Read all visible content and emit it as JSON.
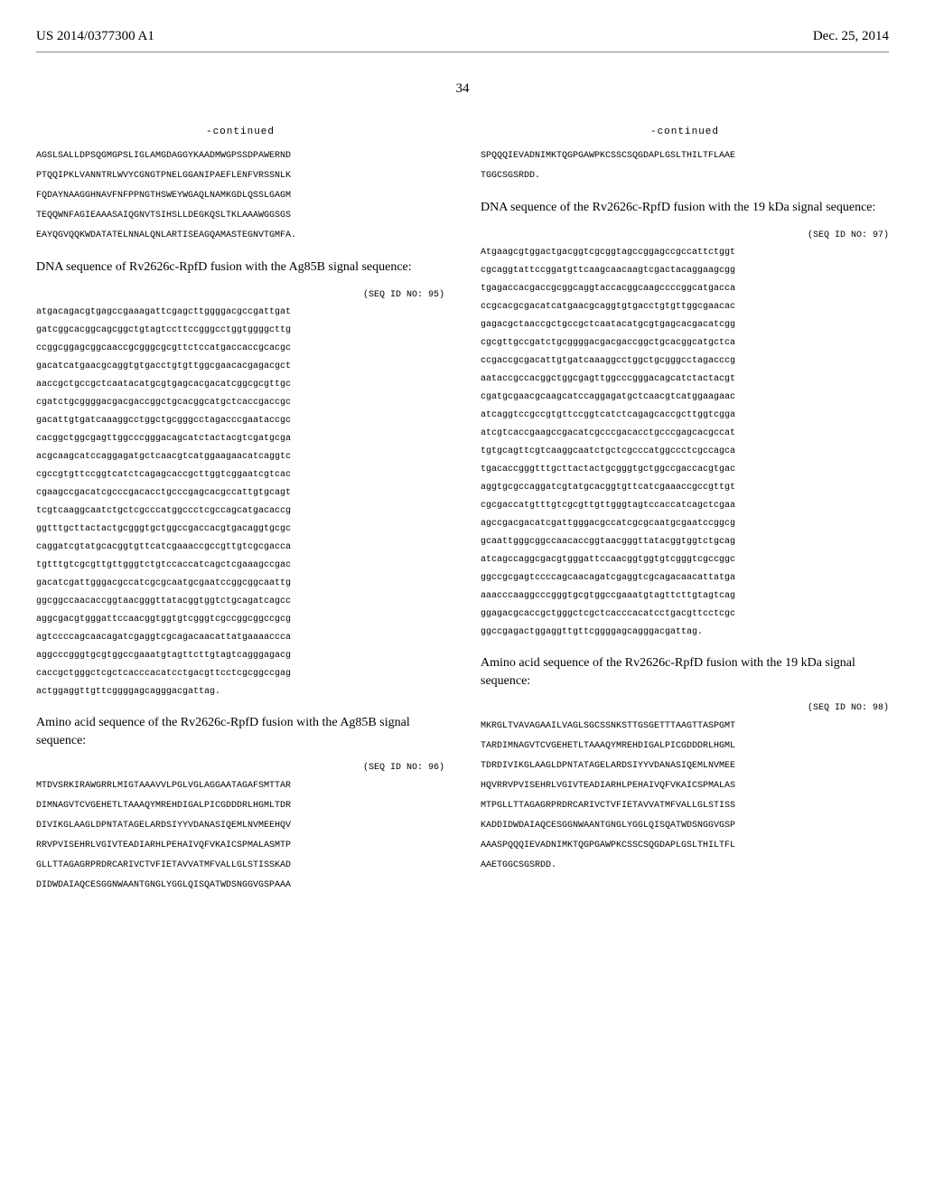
{
  "header": {
    "left": "US 2014/0377300 A1",
    "right": "Dec. 25, 2014"
  },
  "page_number": "34",
  "left_col": {
    "continued": "-continued",
    "seq1": "AGSLSALLDPSQGMGPSLIGLAMGDAGGYKAADMWGPSSDPAWERND\nPTQQIPKLVANNTRLWVYCGNGTPNELGGANIPAEFLENFVRSSNLK\nFQDAYNAAGGHNAVFNFPPNGTHSWEYWGAQLNAMKGDLQSSLGAGM\nTEQQWNFAGIEAAASAIQGNVTSIHSLLDEGKQSLTKLAAAWGGSGS\nEAYQGVQQKWDATATELNNALQNLARTISEAGQAMASTEGNVTGMFA.",
    "desc1": "DNA sequence of Rv2626c-RpfD fusion with the Ag85B signal sequence:",
    "seq_id1": "(SEQ ID NO: 95)",
    "seq2": "atgacagacgtgagccgaaagattcgagcttggggacgccgattgat\ngatcggcacggcagcggctgtagtccttccgggcctggtggggcttg\nccggcggagcggcaaccgcgggcgcgttctccatgaccaccgcacgc\ngacatcatgaacgcaggtgtgacctgtgttggcgaacacgagacgct\naaccgctgccgctcaatacatgcgtgagcacgacatcggcgcgttgc\ncgatctgcggggacgacgaccggctgcacggcatgctcaccgaccgc\ngacattgtgatcaaaggcctggctgcgggcctagacccgaataccgc\ncacggctggcgagttggcccgggacagcatctactacgtcgatgcga\nacgcaagcatccaggagatgctcaacgtcatggaagaacatcaggtc\ncgccgtgttccggtcatctcagagcaccgcttggtcggaatcgtcac\ncgaagccgacatcgcccgacacctgcccgagcacgccattgtgcagt\ntcgtcaaggcaatctgctcgcccatggccctcgccagcatgacaccg\nggtttgcttactactgcgggtgctggccgaccacgtgacaggtgcgc\ncaggatcgtatgcacggtgttcatcgaaaccgccgttgtcgcgacca\ntgtttgtcgcgttgttgggtctgtccaccatcagctcgaaagccgac\ngacatcgattgggacgccatcgcgcaatgcgaatccggcggcaattg\nggcggccaacaccggtaacgggttatacggtggtctgcagatcagcc\naggcgacgtgggattccaacggtggtgtcgggtcgccggcggccgcg\nagtccccagcaacagatcgaggtcgcagacaacattatgaaaaccca\naggcccgggtgcgtggccgaaatgtagttcttgtagtcagggagacg\ncaccgctgggctcgctcacccacatcctgacgttcctcgcggccgag\nactggaggttgttcggggagcagggacgattag.",
    "desc2": "Amino acid sequence of the Rv2626c-RpfD fusion with the Ag85B signal sequence:",
    "seq_id2": "(SEQ ID NO: 96)",
    "seq3": "MTDVSRKIRAWGRRLMIGTAAAVVLPGLVGLAGGAATAGAFSMTTAR\nDIMNAGVTCVGEHETLTAAAQYMREHDIGALPICGDDDRLHGMLTDR\nDIVIKGLAAGLDPNTATAGELARDSIYYVDANASIQEMLNVMEEHQV\nRRVPVISEHRLVGIVTEADIARHLPEHAIVQFVKAICSPMALASMTP\nGLLTTAGAGRPRDRCARIVCTVFIETAVVATMFVALLGLSTISSKAD\nDIDWDAIAQCESGGNWAANTGNGLYGGLQISQATWDSNGGVGSPAAA"
  },
  "right_col": {
    "continued": "-continued",
    "seq1": "SPQQQIEVADNIMKTQGPGAWPKCSSCSQGDAPLGSLTHILTFLAAE\nTGGCSGSRDD.",
    "desc1": "DNA sequence of the Rv2626c-RpfD fusion with the 19 kDa signal sequence:",
    "seq_id1": "(SEQ ID NO: 97)",
    "seq2": "Atgaagcgtggactgacggtcgcggtagccggagccgccattctggt\ncgcaggtattccggatgttcaagcaacaagtcgactacaggaagcgg\ntgagaccacgaccgcggcaggtaccacggcaagccccggcatgacca\nccgcacgcgacatcatgaacgcaggtgtgacctgtgttggcgaacac\ngagacgctaaccgctgccgctcaatacatgcgtgagcacgacatcgg\ncgcgttgccgatctgcggggacgacgaccggctgcacggcatgctca\nccgaccgcgacattgtgatcaaaggcctggctgcgggcctagacccg\naataccgccacggctggcgagttggcccgggacagcatctactacgt\ncgatgcgaacgcaagcatccaggagatgctcaacgtcatggaagaac\natcaggtccgccgtgttccggtcatctcagagcaccgcttggtcgga\natcgtcaccgaagccgacatcgcccgacacctgcccgagcacgccat\ntgtgcagttcgtcaaggcaatctgctcgcccatggccctcgccagca\ntgacaccgggtttgcttactactgcgggtgctggccgaccacgtgac\naggtgcgccaggatcgtatgcacggtgttcatcgaaaccgccgttgt\ncgcgaccatgtttgtcgcgttgttgggtagtccaccatcagctcgaa\nagccgacgacatcgattgggacgccatcgcgcaatgcgaatccggcg\ngcaattgggcggccaacaccggtaacgggttatacggtggtctgcag\natcagccaggcgacgtgggattccaacggtggtgtcgggtcgccggc\nggccgcgagtccccagcaacagatcgaggtcgcagacaacattatga\naaacccaaggcccgggtgcgtggccgaaatgtagttcttgtagtcag\nggagacgcaccgctgggctcgctcacccacatcctgacgttcctcgc\nggccgagactggaggttgttcggggagcagggacgattag.",
    "desc2": "Amino acid sequence of the Rv2626c-RpfD fusion with the 19 kDa signal sequence:",
    "seq_id2": "(SEQ ID NO: 98)",
    "seq3": "MKRGLTVAVAGAAILVAGLSGCSSNKSTTGSGETTTAAGTTASPGMT\nTARDIMNAGVTCVGEHETLTAAAQYMREHDIGALPICGDDDRLHGML\nTDRDIVIKGLAAGLDPNTATAGELARDSIYYVDANASIQEMLNVMEE\nHQVRRVPVISEHRLVGIVTEADIARHLPEHAIVQFVKAICSPMALAS\nMTPGLLTTAGAGRPRDRCARIVCTVFIETAVVATMFVALLGLSTISS\nKADDIDWDAIAQCESGGNWAANTGNGLYGGLQISQATWDSNGGVGSP\nAAASPQQQIEVADNIMKTQGPGAWPKCSSCSQGDAPLGSLTHILTFL\nAAETGGCSGSRDD."
  }
}
